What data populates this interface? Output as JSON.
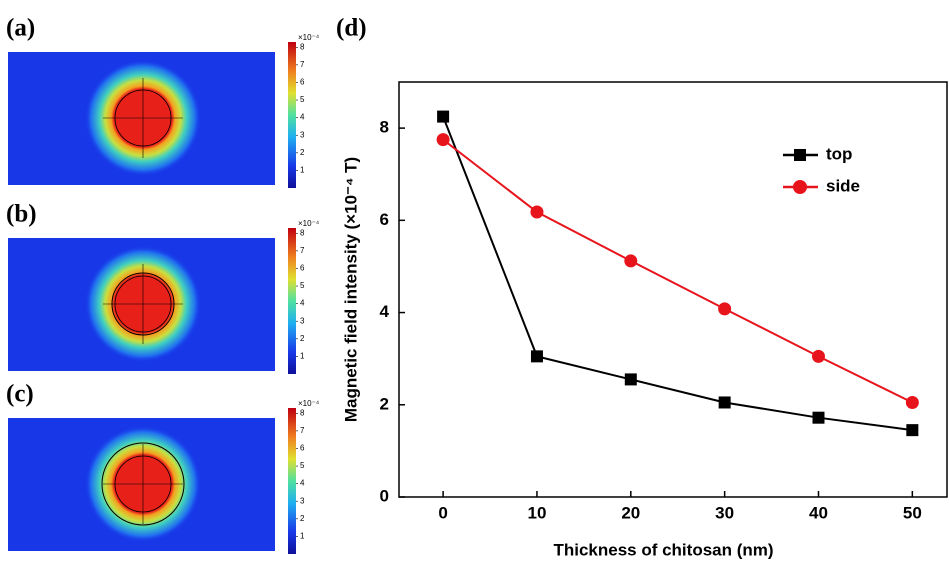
{
  "panels": [
    {
      "label": "(a)"
    },
    {
      "label": "(b)"
    },
    {
      "label": "(c)"
    }
  ],
  "colorbar": {
    "label": "×10⁻⁴",
    "lim": [
      0,
      8.3
    ],
    "ticks": [
      1,
      2,
      3,
      4,
      5,
      6,
      7,
      8
    ]
  },
  "chart_data": {
    "type": "line",
    "panel_label": "(d)",
    "x_label": "Thickness of chitosan (nm)",
    "y_label": "Magnetic field intensity (×10⁻⁴ T)",
    "x": [
      0,
      10,
      20,
      30,
      40,
      50
    ],
    "series": [
      {
        "name": "top",
        "color": "#000000",
        "marker": "square",
        "values": [
          8.25,
          3.05,
          2.55,
          2.05,
          1.72,
          1.45
        ]
      },
      {
        "name": "side",
        "color": "#e8141c",
        "marker": "circle",
        "values": [
          7.75,
          6.18,
          5.12,
          4.08,
          3.05,
          2.05
        ]
      }
    ],
    "xlim": [
      -4.7,
      53.8
    ],
    "ylim": [
      0,
      9
    ],
    "xticks": [
      0,
      10,
      20,
      30,
      40,
      50
    ],
    "yticks": [
      0,
      2,
      4,
      6,
      8
    ],
    "legend": "upper-right"
  }
}
